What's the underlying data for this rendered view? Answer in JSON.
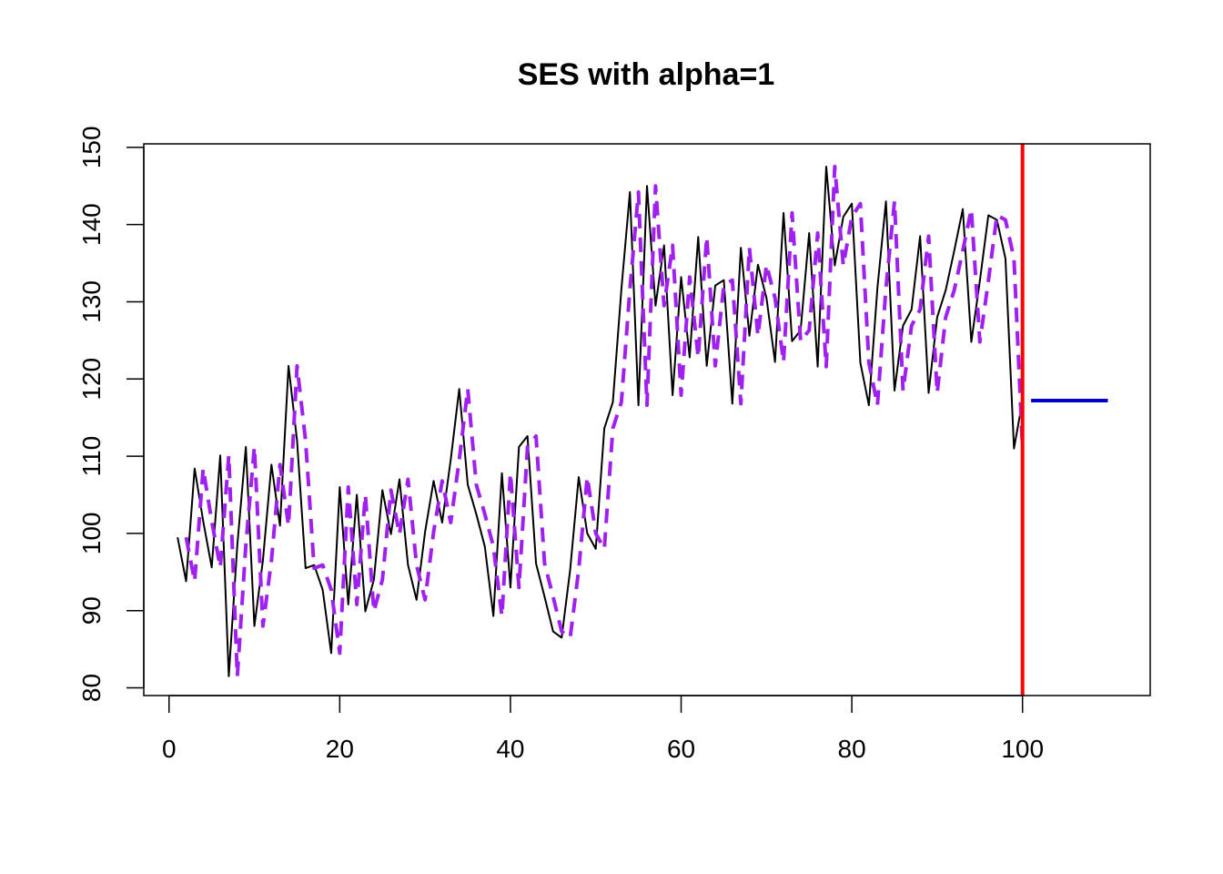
{
  "chart_data": {
    "type": "line",
    "title": "SES with alpha=1",
    "xlabel": "",
    "ylabel": "",
    "xlim": [
      -2.96,
      114.96
    ],
    "ylim": [
      79,
      150.45
    ],
    "x_ticks": [
      0,
      20,
      40,
      60,
      80,
      100
    ],
    "y_ticks": [
      80,
      90,
      100,
      110,
      120,
      130,
      140,
      150
    ],
    "grid": false,
    "series": [
      {
        "style": "solid",
        "color": "#000000",
        "x_start": 1,
        "values": [
          99.5,
          93.8,
          108.4,
          101.6,
          95.6,
          110.1,
          81.5,
          98.5,
          111.2,
          88.0,
          96.5,
          108.9,
          101.0,
          121.7,
          112.0,
          95.5,
          95.9,
          92.7,
          84.5,
          106.0,
          90.8,
          105.0,
          89.9,
          94.0,
          105.6,
          99.9,
          107.0,
          95.9,
          91.4,
          100.2,
          106.8,
          101.4,
          109.5,
          118.7,
          106.3,
          102.5,
          98.3,
          89.3,
          107.8,
          93.0,
          111.2,
          112.6,
          96.1,
          91.8,
          87.3,
          86.5,
          95.3,
          107.3,
          100.0,
          98.0,
          113.6,
          117.0,
          131.6,
          144.2,
          116.6,
          145.0,
          129.5,
          137.3,
          117.9,
          133.2,
          122.8,
          138.4,
          121.7,
          132.1,
          132.8,
          116.8,
          137.0,
          125.6,
          134.8,
          130.5,
          122.2,
          141.5,
          124.9,
          126.3,
          138.9,
          121.6,
          147.5,
          134.7,
          141.0,
          142.7,
          122.1,
          116.6,
          131.8,
          143.0,
          118.5,
          126.9,
          129.0,
          138.5,
          118.2,
          128.0,
          131.5,
          136.6,
          142.0,
          124.8,
          132.7,
          141.2,
          140.6,
          135.6,
          111.0,
          117.2
        ]
      },
      {
        "style": "dashed",
        "color": "#a020f0",
        "x_start": 2,
        "values": [
          99.5,
          93.8,
          108.4,
          101.6,
          95.6,
          110.1,
          81.5,
          98.5,
          111.2,
          88.0,
          96.5,
          108.9,
          101.0,
          121.7,
          112.0,
          95.5,
          95.9,
          92.7,
          84.5,
          106.0,
          90.8,
          105.0,
          89.9,
          94.0,
          105.6,
          99.9,
          107.0,
          95.9,
          91.4,
          100.2,
          106.8,
          101.4,
          109.5,
          118.7,
          106.3,
          102.5,
          98.3,
          89.3,
          107.8,
          93.0,
          111.2,
          112.6,
          96.1,
          91.8,
          87.3,
          86.5,
          95.3,
          107.3,
          100.0,
          98.0,
          113.6,
          117.0,
          131.6,
          144.2,
          116.6,
          145.0,
          129.5,
          137.3,
          117.9,
          133.2,
          122.8,
          138.4,
          121.7,
          132.1,
          132.8,
          116.8,
          137.0,
          125.6,
          134.8,
          130.5,
          122.2,
          141.5,
          124.9,
          126.3,
          138.9,
          121.6,
          147.5,
          134.7,
          141.0,
          142.7,
          122.1,
          116.6,
          131.8,
          143.0,
          118.5,
          126.9,
          129.0,
          138.5,
          118.2,
          128.0,
          131.5,
          136.6,
          142.0,
          124.8,
          132.7,
          141.2,
          140.6,
          135.6,
          111.0
        ]
      },
      {
        "style": "solid",
        "color": "#0000cd",
        "x": [
          101,
          110
        ],
        "values": [
          117.2,
          117.2
        ]
      }
    ],
    "vline": {
      "x": 100,
      "color": "#ff0000"
    }
  }
}
